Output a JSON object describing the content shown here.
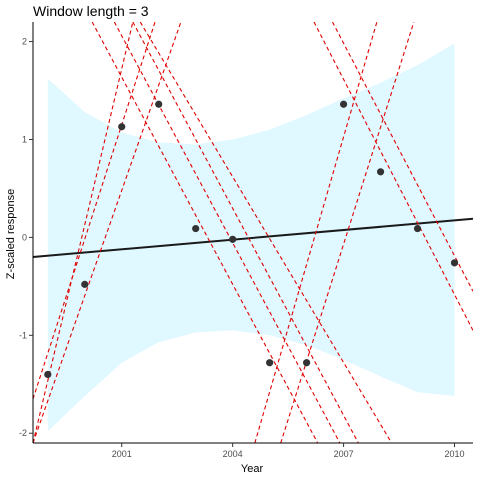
{
  "chart_data": {
    "type": "scatter",
    "title": "Window length = 3",
    "xlabel": "Year",
    "ylabel": "Z-scaled response",
    "xlim": [
      1998.6,
      2010.5
    ],
    "ylim": [
      -2.1,
      2.2
    ],
    "x_ticks": [
      2001,
      2004,
      2007,
      2010
    ],
    "y_ticks": [
      -2,
      -1,
      0,
      1,
      2
    ],
    "grid": false,
    "colors": {
      "points": "#333333",
      "trend_line": "#1a1a1a",
      "window_lines": "#e00000",
      "ribbon": "#e0f8ff"
    },
    "points": [
      {
        "x": 1999,
        "y": -1.4
      },
      {
        "x": 2000,
        "y": -0.48
      },
      {
        "x": 2001,
        "y": 1.13
      },
      {
        "x": 2002,
        "y": 1.36
      },
      {
        "x": 2003,
        "y": 0.09
      },
      {
        "x": 2004,
        "y": -0.02
      },
      {
        "x": 2005,
        "y": -1.28
      },
      {
        "x": 2006,
        "y": -1.28
      },
      {
        "x": 2007,
        "y": 1.36
      },
      {
        "x": 2008,
        "y": 0.67
      },
      {
        "x": 2009,
        "y": 0.09
      },
      {
        "x": 2010,
        "y": -0.26
      }
    ],
    "trend_line": {
      "x": [
        1998.6,
        2010.5
      ],
      "y": [
        -0.2,
        0.19
      ]
    },
    "ribbon": {
      "x": [
        1999,
        2000,
        2001,
        2002,
        2003,
        2004,
        2005,
        2006,
        2007,
        2008,
        2009,
        2010
      ],
      "upper": [
        1.62,
        1.28,
        1.07,
        0.97,
        0.95,
        1.0,
        1.1,
        1.25,
        1.42,
        1.58,
        1.76,
        1.98
      ],
      "lower": [
        -1.98,
        -1.62,
        -1.28,
        -1.07,
        -0.97,
        -0.95,
        -1.0,
        -1.1,
        -1.25,
        -1.42,
        -1.58,
        -1.62
      ]
    },
    "window_lines": [
      {
        "x": [
          1998.6,
          2002.6
        ],
        "y": [
          -2.1,
          2.2
        ]
      },
      {
        "x": [
          1998.6,
          2001.9
        ],
        "y": [
          -1.65,
          2.2
        ]
      },
      {
        "x": [
          1998.6,
          2001.3
        ],
        "y": [
          -2.1,
          2.2
        ]
      },
      {
        "x": [
          2000.2,
          2006.3
        ],
        "y": [
          2.2,
          -2.1
        ]
      },
      {
        "x": [
          2000.8,
          2006.9
        ],
        "y": [
          2.2,
          -2.1
        ]
      },
      {
        "x": [
          2001.3,
          2007.4
        ],
        "y": [
          2.2,
          -2.1
        ]
      },
      {
        "x": [
          2001.5,
          2008.3
        ],
        "y": [
          2.2,
          -2.1
        ]
      },
      {
        "x": [
          2004.6,
          2007.9
        ],
        "y": [
          -2.1,
          2.2
        ]
      },
      {
        "x": [
          2005.3,
          2008.9
        ],
        "y": [
          -2.1,
          2.2
        ]
      },
      {
        "x": [
          2006.2,
          2010.5
        ],
        "y": [
          2.2,
          -0.95
        ]
      },
      {
        "x": [
          2006.7,
          2010.5
        ],
        "y": [
          2.2,
          -0.55
        ]
      }
    ]
  }
}
